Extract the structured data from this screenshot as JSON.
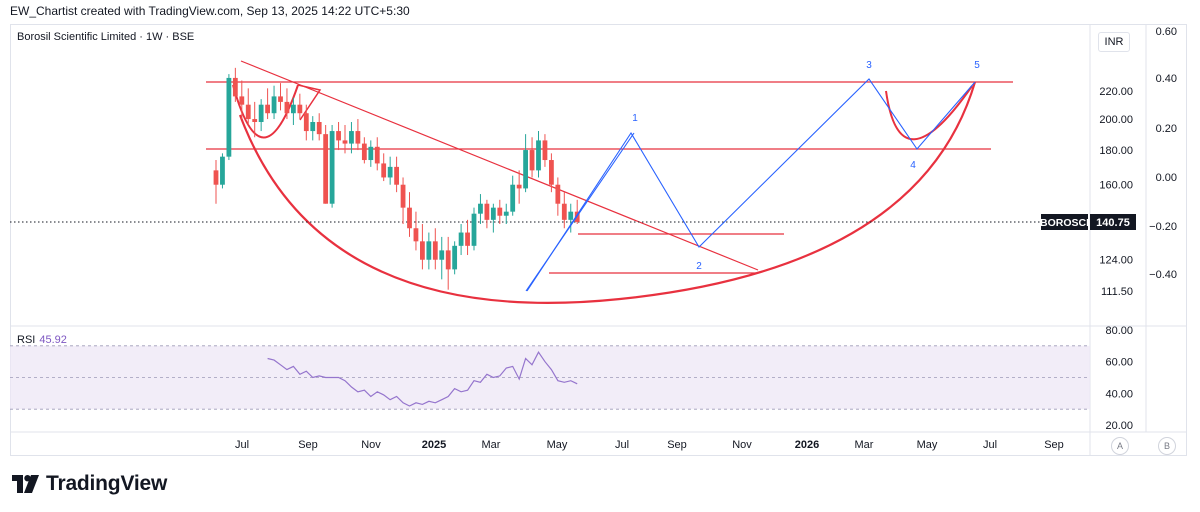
{
  "header": {
    "attribution": "EW_Chartist created with TradingView.com, Sep 13, 2025 14:22 UTC+5:30"
  },
  "symbol": {
    "title": "Borosil Scientific Limited · 1W · BSE"
  },
  "currency": "INR",
  "rsi": {
    "label": "RSI",
    "value": "45.92"
  },
  "price_badge": {
    "ticker": "BOROSCI",
    "price": "140.75"
  },
  "panel_buttons": {
    "a": "A",
    "b": "B"
  },
  "brand": {
    "name": "TradingView"
  },
  "colors": {
    "up": "#26a69a",
    "down": "#ef5350",
    "drawing_red": "#e8313f",
    "wave_blue": "#2962ff",
    "rsi_line": "#9575cd",
    "rsi_band": "#ede7f6"
  },
  "chart_data": [
    {
      "type": "candlestick",
      "title": "Borosil Scientific Limited · 1W · BSE",
      "x_tick_labels": [
        "Jul",
        "Sep",
        "Nov",
        "2025",
        "Mar",
        "May",
        "Jul",
        "Sep",
        "Nov",
        "2026",
        "Mar",
        "May",
        "Jul",
        "Sep"
      ],
      "price_axis_labels": [
        "220.00",
        "200.00",
        "180.00",
        "160.00",
        "124.00",
        "111.50"
      ],
      "right_axis_labels": [
        "0.60",
        "0.40",
        "0.20",
        "0.00",
        "−0.20",
        "−0.40"
      ],
      "ylim": [
        104,
        245
      ],
      "scale": "log",
      "current_price": 140.75,
      "weekly_ohlc_approx": [
        [
          168,
          174,
          150,
          160
        ],
        [
          160,
          178,
          158,
          176
        ],
        [
          176,
          233,
          174,
          230
        ],
        [
          230,
          238,
          212,
          216
        ],
        [
          216,
          228,
          200,
          210
        ],
        [
          210,
          222,
          196,
          200
        ],
        [
          200,
          212,
          188,
          198
        ],
        [
          198,
          214,
          192,
          210
        ],
        [
          210,
          222,
          200,
          204
        ],
        [
          204,
          224,
          200,
          216
        ],
        [
          216,
          226,
          206,
          212
        ],
        [
          212,
          222,
          200,
          204
        ],
        [
          204,
          215,
          196,
          210
        ],
        [
          210,
          218,
          200,
          204
        ],
        [
          204,
          210,
          186,
          192
        ],
        [
          192,
          202,
          186,
          198
        ],
        [
          198,
          204,
          186,
          190
        ],
        [
          190,
          196,
          150,
          150
        ],
        [
          150,
          196,
          148,
          192
        ],
        [
          192,
          198,
          180,
          186
        ],
        [
          186,
          196,
          178,
          184
        ],
        [
          184,
          198,
          178,
          192
        ],
        [
          192,
          200,
          180,
          184
        ],
        [
          184,
          188,
          172,
          174
        ],
        [
          174,
          186,
          170,
          182
        ],
        [
          182,
          188,
          168,
          172
        ],
        [
          172,
          178,
          162,
          164
        ],
        [
          164,
          176,
          160,
          170
        ],
        [
          170,
          176,
          156,
          160
        ],
        [
          160,
          164,
          140,
          148
        ],
        [
          148,
          156,
          134,
          138
        ],
        [
          138,
          146,
          128,
          132
        ],
        [
          132,
          140,
          120,
          124
        ],
        [
          124,
          136,
          120,
          132
        ],
        [
          132,
          138,
          120,
          124
        ],
        [
          124,
          134,
          116,
          128
        ],
        [
          128,
          134,
          112,
          120
        ],
        [
          120,
          132,
          118,
          130
        ],
        [
          130,
          140,
          126,
          136
        ],
        [
          136,
          142,
          126,
          130
        ],
        [
          130,
          148,
          128,
          145
        ],
        [
          145,
          155,
          140,
          150
        ],
        [
          150,
          152,
          138,
          142
        ],
        [
          142,
          150,
          136,
          148
        ],
        [
          148,
          152,
          140,
          144
        ],
        [
          144,
          150,
          140,
          146
        ],
        [
          146,
          165,
          144,
          160
        ],
        [
          160,
          168,
          150,
          158
        ],
        [
          158,
          190,
          156,
          180
        ],
        [
          180,
          188,
          164,
          168
        ],
        [
          168,
          192,
          164,
          186
        ],
        [
          186,
          190,
          170,
          174
        ],
        [
          174,
          178,
          156,
          160
        ],
        [
          160,
          164,
          144,
          150
        ],
        [
          150,
          156,
          138,
          142
        ],
        [
          142,
          150,
          136,
          146
        ],
        [
          146,
          152,
          140,
          141
        ]
      ],
      "wave_labels": [
        "1",
        "2",
        "3",
        "4",
        "5"
      ],
      "wave_points": [
        {
          "label": "start",
          "date": "Apr 2025",
          "price": 111.5
        },
        {
          "label": "1",
          "date": "Jul 2025",
          "price": 190
        },
        {
          "label": "2",
          "date": "Sep 2025",
          "price": 130
        },
        {
          "label": "3",
          "date": "Mar 2026",
          "price": 224
        },
        {
          "label": "4",
          "date": "Apr 2026",
          "price": 180
        },
        {
          "label": "5",
          "date": "Jun 2026",
          "price": 224
        }
      ],
      "horizontal_levels": [
        224,
        180,
        138,
        124
      ],
      "patterns": [
        "cup and handle (rounded bottom)",
        "descending trendline",
        "Elliott wave 1-5 projection"
      ]
    },
    {
      "type": "line",
      "title": "RSI",
      "value": 45.92,
      "tick_labels": [
        "80.00",
        "60.00",
        "40.00",
        "20.00"
      ],
      "ylim": [
        18,
        82
      ],
      "band": [
        30,
        70
      ],
      "midline": 50,
      "values_approx": [
        62,
        61,
        58,
        55,
        57,
        52,
        54,
        50,
        51,
        50,
        50,
        50,
        48,
        44,
        41,
        42,
        38,
        41,
        39,
        36,
        38,
        34,
        32,
        34,
        33,
        35,
        34,
        36,
        38,
        43,
        41,
        42,
        48,
        47,
        52,
        50,
        51,
        56,
        57,
        49,
        62,
        58,
        66,
        60,
        55,
        48,
        47,
        48,
        46
      ]
    }
  ]
}
